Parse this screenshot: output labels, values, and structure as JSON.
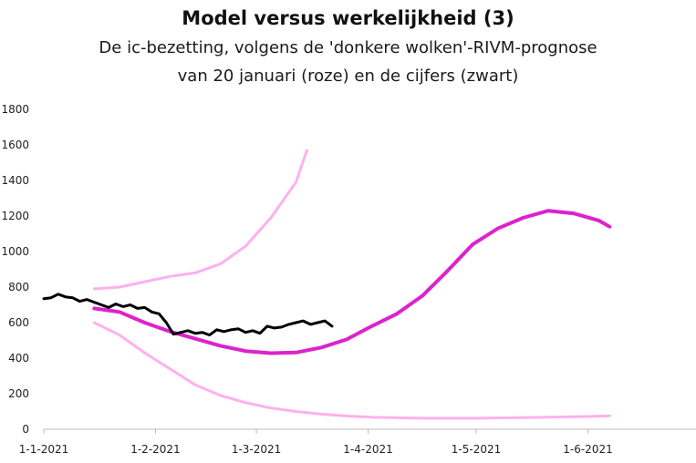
{
  "chart_data": {
    "type": "line",
    "title": "Model versus werkelijkheid (3)",
    "subtitle_lines": [
      "De ic-bezetting, volgens de 'donkere wolken'-RIVM-prognose",
      "van 20 januari (roze) en de cijfers (zwart)"
    ],
    "ylim": [
      0,
      1800
    ],
    "yticks": [
      0,
      200,
      400,
      600,
      800,
      1000,
      1200,
      1400,
      1600,
      1800
    ],
    "xlim": [
      "2021-01-01",
      "2021-07-01"
    ],
    "xticks": [
      {
        "date": "2021-01-01",
        "label": "1-1-2021"
      },
      {
        "date": "2021-02-01",
        "label": "1-2-2021"
      },
      {
        "date": "2021-03-01",
        "label": "1-3-2021"
      },
      {
        "date": "2021-04-01",
        "label": "1-4-2021"
      },
      {
        "date": "2021-05-01",
        "label": "1-5-2021"
      },
      {
        "date": "2021-06-01",
        "label": "1-6-2021"
      }
    ],
    "grid": false,
    "legend": "none",
    "series": [
      {
        "color": "#ffb0ee",
        "stroke_width": 3,
        "points": [
          [
            "2021-01-15",
            790
          ],
          [
            "2021-01-22",
            800
          ],
          [
            "2021-01-29",
            830
          ],
          [
            "2021-02-05",
            860
          ],
          [
            "2021-02-12",
            880
          ],
          [
            "2021-02-19",
            930
          ],
          [
            "2021-02-26",
            1030
          ],
          [
            "2021-03-05",
            1190
          ],
          [
            "2021-03-12",
            1390
          ],
          [
            "2021-03-15",
            1570
          ]
        ]
      },
      {
        "color": "#dd22cc",
        "stroke_width": 4,
        "points": [
          [
            "2021-01-15",
            680
          ],
          [
            "2021-01-22",
            660
          ],
          [
            "2021-01-29",
            600
          ],
          [
            "2021-02-05",
            550
          ],
          [
            "2021-02-12",
            510
          ],
          [
            "2021-02-19",
            470
          ],
          [
            "2021-02-26",
            440
          ],
          [
            "2021-03-05",
            428
          ],
          [
            "2021-03-12",
            432
          ],
          [
            "2021-03-19",
            460
          ],
          [
            "2021-03-26",
            505
          ],
          [
            "2021-04-02",
            580
          ],
          [
            "2021-04-09",
            650
          ],
          [
            "2021-04-16",
            750
          ],
          [
            "2021-04-23",
            890
          ],
          [
            "2021-04-30",
            1040
          ],
          [
            "2021-05-07",
            1130
          ],
          [
            "2021-05-14",
            1190
          ],
          [
            "2021-05-21",
            1230
          ],
          [
            "2021-05-28",
            1215
          ],
          [
            "2021-06-04",
            1175
          ],
          [
            "2021-06-07",
            1140
          ]
        ]
      },
      {
        "color": "#ffb0ee",
        "stroke_width": 3,
        "points": [
          [
            "2021-01-15",
            600
          ],
          [
            "2021-01-22",
            530
          ],
          [
            "2021-01-29",
            430
          ],
          [
            "2021-02-05",
            340
          ],
          [
            "2021-02-12",
            250
          ],
          [
            "2021-02-19",
            190
          ],
          [
            "2021-02-26",
            150
          ],
          [
            "2021-03-05",
            120
          ],
          [
            "2021-03-12",
            100
          ],
          [
            "2021-03-19",
            85
          ],
          [
            "2021-03-26",
            75
          ],
          [
            "2021-04-02",
            68
          ],
          [
            "2021-04-16",
            62
          ],
          [
            "2021-05-01",
            62
          ],
          [
            "2021-05-15",
            66
          ],
          [
            "2021-06-01",
            72
          ],
          [
            "2021-06-07",
            76
          ]
        ]
      },
      {
        "color": "#000000",
        "stroke_width": 3,
        "points": [
          [
            "2021-01-01",
            735
          ],
          [
            "2021-01-03",
            740
          ],
          [
            "2021-01-05",
            760
          ],
          [
            "2021-01-07",
            745
          ],
          [
            "2021-01-09",
            740
          ],
          [
            "2021-01-11",
            720
          ],
          [
            "2021-01-13",
            730
          ],
          [
            "2021-01-15",
            715
          ],
          [
            "2021-01-17",
            700
          ],
          [
            "2021-01-19",
            685
          ],
          [
            "2021-01-21",
            705
          ],
          [
            "2021-01-23",
            690
          ],
          [
            "2021-01-25",
            700
          ],
          [
            "2021-01-27",
            680
          ],
          [
            "2021-01-29",
            685
          ],
          [
            "2021-01-31",
            660
          ],
          [
            "2021-02-02",
            650
          ],
          [
            "2021-02-04",
            600
          ],
          [
            "2021-02-06",
            535
          ],
          [
            "2021-02-08",
            545
          ],
          [
            "2021-02-10",
            555
          ],
          [
            "2021-02-12",
            540
          ],
          [
            "2021-02-14",
            545
          ],
          [
            "2021-02-16",
            530
          ],
          [
            "2021-02-18",
            560
          ],
          [
            "2021-02-20",
            550
          ],
          [
            "2021-02-22",
            560
          ],
          [
            "2021-02-24",
            565
          ],
          [
            "2021-02-26",
            545
          ],
          [
            "2021-02-28",
            555
          ],
          [
            "2021-03-02",
            540
          ],
          [
            "2021-03-04",
            580
          ],
          [
            "2021-03-06",
            570
          ],
          [
            "2021-03-08",
            575
          ],
          [
            "2021-03-10",
            590
          ],
          [
            "2021-03-12",
            600
          ],
          [
            "2021-03-14",
            610
          ],
          [
            "2021-03-16",
            590
          ],
          [
            "2021-03-18",
            600
          ],
          [
            "2021-03-20",
            610
          ],
          [
            "2021-03-22",
            580
          ]
        ]
      }
    ]
  }
}
